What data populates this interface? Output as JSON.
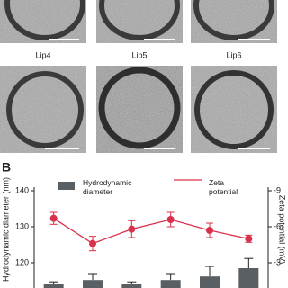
{
  "images": {
    "labels": [
      "Lip4",
      "Lip5",
      "Lip6"
    ]
  },
  "panel_label": "B",
  "chart_data": {
    "type": "bar_line",
    "y_label": "Hydrodynamic diameter (nm)",
    "y2_label": "Zeta potential (mV)",
    "categories": [
      null,
      null,
      null,
      null,
      null,
      null
    ],
    "series": [
      {
        "name": "Hydrodynamic diameter",
        "type": "bar",
        "axis": "y",
        "color": "#5a5f63",
        "values": [
          114.2,
          115.2,
          114.2,
          115.2,
          116.2,
          118.5
        ],
        "errors": [
          0.5,
          1.8,
          0.5,
          1.8,
          2.8,
          2.7
        ]
      },
      {
        "name": "Zeta potential",
        "type": "line",
        "axis": "y2",
        "color": "#d9304c",
        "values": [
          -6.7,
          -4.6,
          -5.8,
          -6.6,
          -5.7,
          -5.0
        ],
        "errors": [
          0.5,
          0.6,
          0.7,
          0.6,
          0.6,
          0.3
        ]
      }
    ],
    "ylim": [
      113,
      141
    ],
    "yticks": [
      120,
      130,
      140
    ],
    "y2lim": [
      -0.9,
      -9.3
    ],
    "y2ticks": [
      -3,
      -6,
      -9
    ]
  }
}
